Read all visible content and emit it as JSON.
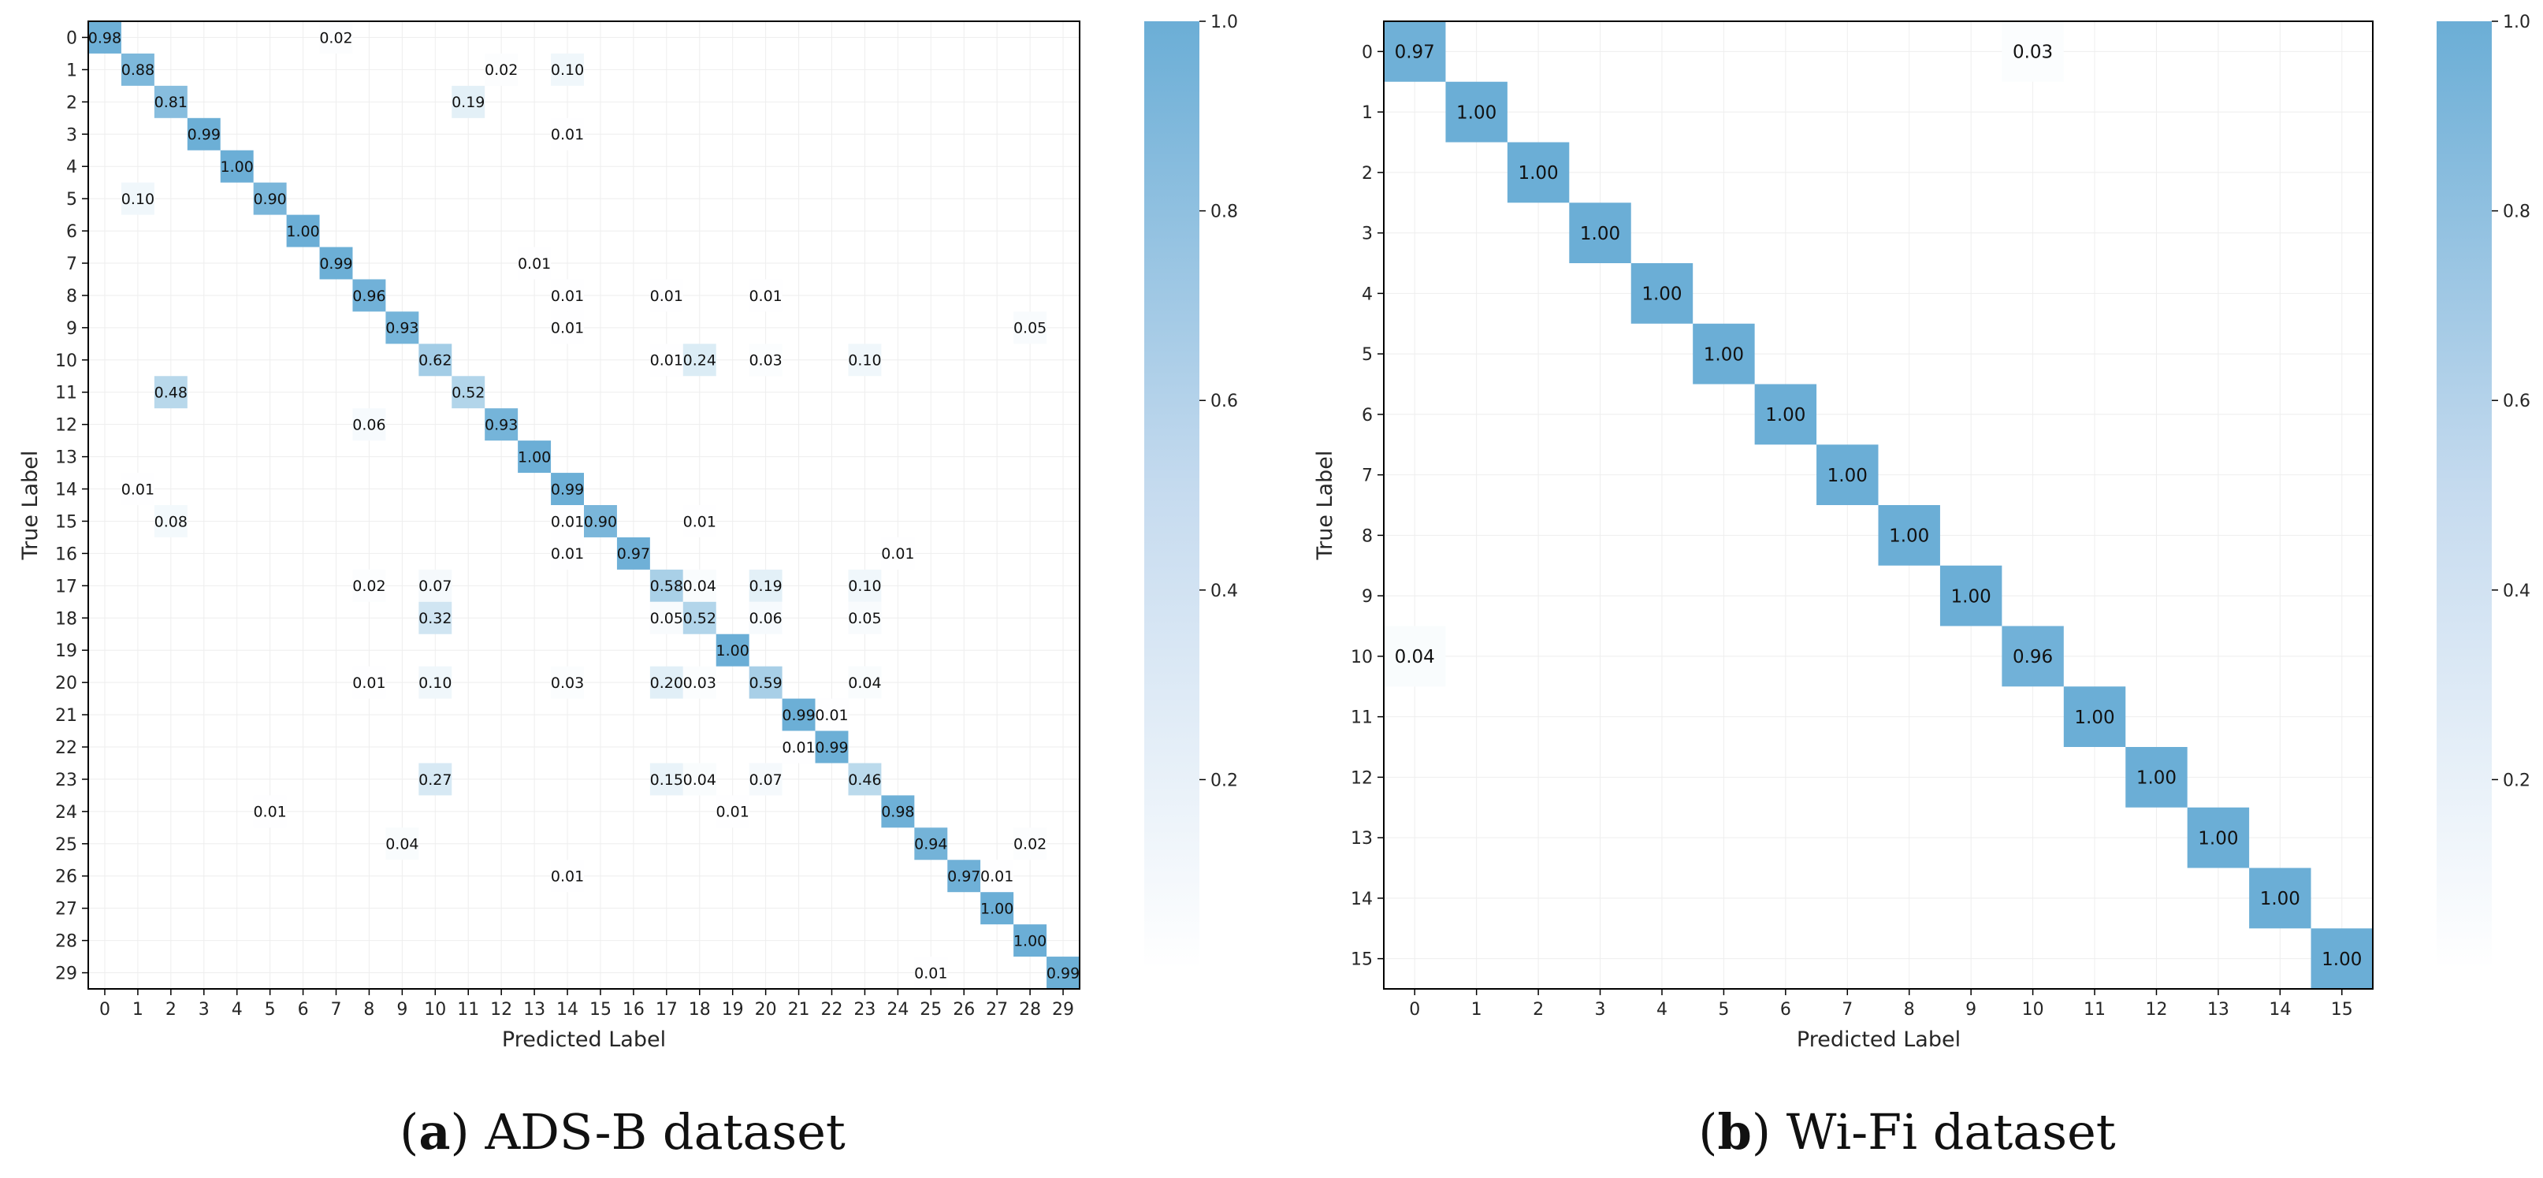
{
  "figure": {
    "panels": [
      {
        "caption_letter": "a",
        "caption_text": "ADS-B dataset",
        "colorbar_ticks": [
          "0.2",
          "0.4",
          "0.6",
          "0.8",
          "1.0"
        ],
        "colorbar_values": [
          0.2,
          0.4,
          0.6,
          0.8,
          1.0
        ]
      },
      {
        "caption_letter": "b",
        "caption_text": "Wi-Fi dataset",
        "colorbar_ticks": [
          "0.2",
          "0.4",
          "0.6",
          "0.8",
          "1.0"
        ],
        "colorbar_values": [
          0.2,
          0.4,
          0.6,
          0.8,
          1.0
        ]
      }
    ]
  },
  "colors": {
    "high": "#6baed6",
    "low": "#ffffff",
    "grid": "#eeeeee",
    "border": "#000000"
  },
  "chart_data": [
    {
      "type": "heatmap",
      "title": "ADS-B dataset",
      "xlabel": "Predicted Label",
      "ylabel": "True Label",
      "n": 30,
      "labels": [
        "0",
        "1",
        "2",
        "3",
        "4",
        "5",
        "6",
        "7",
        "8",
        "9",
        "10",
        "11",
        "12",
        "13",
        "14",
        "15",
        "16",
        "17",
        "18",
        "19",
        "20",
        "21",
        "22",
        "23",
        "24",
        "25",
        "26",
        "27",
        "28",
        "29"
      ],
      "cells": [
        [
          0,
          0,
          0.98
        ],
        [
          0,
          7,
          0.02
        ],
        [
          1,
          1,
          0.88
        ],
        [
          1,
          12,
          0.02
        ],
        [
          1,
          14,
          0.1
        ],
        [
          2,
          2,
          0.81
        ],
        [
          2,
          11,
          0.19
        ],
        [
          3,
          3,
          0.99
        ],
        [
          3,
          14,
          0.01
        ],
        [
          4,
          4,
          1.0
        ],
        [
          5,
          1,
          0.1
        ],
        [
          5,
          5,
          0.9
        ],
        [
          6,
          6,
          1.0
        ],
        [
          7,
          7,
          0.99
        ],
        [
          7,
          13,
          0.01
        ],
        [
          8,
          8,
          0.96
        ],
        [
          8,
          14,
          0.01
        ],
        [
          8,
          17,
          0.01
        ],
        [
          8,
          20,
          0.01
        ],
        [
          9,
          9,
          0.93
        ],
        [
          9,
          14,
          0.01
        ],
        [
          9,
          28,
          0.05
        ],
        [
          10,
          10,
          0.62
        ],
        [
          10,
          17,
          0.01
        ],
        [
          10,
          18,
          0.24
        ],
        [
          10,
          20,
          0.03
        ],
        [
          10,
          23,
          0.1
        ],
        [
          11,
          2,
          0.48
        ],
        [
          11,
          11,
          0.52
        ],
        [
          12,
          8,
          0.06
        ],
        [
          12,
          12,
          0.93
        ],
        [
          13,
          13,
          1.0
        ],
        [
          14,
          1,
          0.01
        ],
        [
          14,
          14,
          0.99
        ],
        [
          15,
          2,
          0.08
        ],
        [
          15,
          14,
          0.01
        ],
        [
          15,
          15,
          0.9
        ],
        [
          15,
          18,
          0.01
        ],
        [
          16,
          14,
          0.01
        ],
        [
          16,
          16,
          0.97
        ],
        [
          16,
          24,
          0.01
        ],
        [
          17,
          8,
          0.02
        ],
        [
          17,
          10,
          0.07
        ],
        [
          17,
          17,
          0.58
        ],
        [
          17,
          18,
          0.04
        ],
        [
          17,
          20,
          0.19
        ],
        [
          17,
          23,
          0.1
        ],
        [
          18,
          10,
          0.32
        ],
        [
          18,
          17,
          0.05
        ],
        [
          18,
          18,
          0.52
        ],
        [
          18,
          20,
          0.06
        ],
        [
          18,
          23,
          0.05
        ],
        [
          19,
          19,
          1.0
        ],
        [
          20,
          8,
          0.01
        ],
        [
          20,
          10,
          0.1
        ],
        [
          20,
          14,
          0.03
        ],
        [
          20,
          17,
          0.2
        ],
        [
          20,
          18,
          0.03
        ],
        [
          20,
          20,
          0.59
        ],
        [
          20,
          23,
          0.04
        ],
        [
          21,
          21,
          0.99
        ],
        [
          21,
          22,
          0.01
        ],
        [
          22,
          21,
          0.01
        ],
        [
          22,
          22,
          0.99
        ],
        [
          23,
          10,
          0.27
        ],
        [
          23,
          17,
          0.15
        ],
        [
          23,
          18,
          0.04
        ],
        [
          23,
          20,
          0.07
        ],
        [
          23,
          23,
          0.46
        ],
        [
          24,
          5,
          0.01
        ],
        [
          24,
          19,
          0.01
        ],
        [
          24,
          24,
          0.98
        ],
        [
          25,
          9,
          0.04
        ],
        [
          25,
          25,
          0.94
        ],
        [
          25,
          28,
          0.02
        ],
        [
          26,
          14,
          0.01
        ],
        [
          26,
          26,
          0.97
        ],
        [
          26,
          27,
          0.01
        ],
        [
          27,
          27,
          1.0
        ],
        [
          28,
          28,
          1.0
        ],
        [
          29,
          25,
          0.01
        ],
        [
          29,
          29,
          0.99
        ]
      ],
      "colorbar_range": [
        0,
        1
      ]
    },
    {
      "type": "heatmap",
      "title": "Wi-Fi dataset",
      "xlabel": "Predicted Label",
      "ylabel": "True Label",
      "n": 16,
      "labels": [
        "0",
        "1",
        "2",
        "3",
        "4",
        "5",
        "6",
        "7",
        "8",
        "9",
        "10",
        "11",
        "12",
        "13",
        "14",
        "15"
      ],
      "cells": [
        [
          0,
          0,
          0.97
        ],
        [
          0,
          10,
          0.03
        ],
        [
          1,
          1,
          1.0
        ],
        [
          2,
          2,
          1.0
        ],
        [
          3,
          3,
          1.0
        ],
        [
          4,
          4,
          1.0
        ],
        [
          5,
          5,
          1.0
        ],
        [
          6,
          6,
          1.0
        ],
        [
          7,
          7,
          1.0
        ],
        [
          8,
          8,
          1.0
        ],
        [
          9,
          9,
          1.0
        ],
        [
          10,
          0,
          0.04
        ],
        [
          10,
          10,
          0.96
        ],
        [
          11,
          11,
          1.0
        ],
        [
          12,
          12,
          1.0
        ],
        [
          13,
          13,
          1.0
        ],
        [
          14,
          14,
          1.0
        ],
        [
          15,
          15,
          1.0
        ]
      ],
      "colorbar_range": [
        0,
        1
      ]
    }
  ]
}
